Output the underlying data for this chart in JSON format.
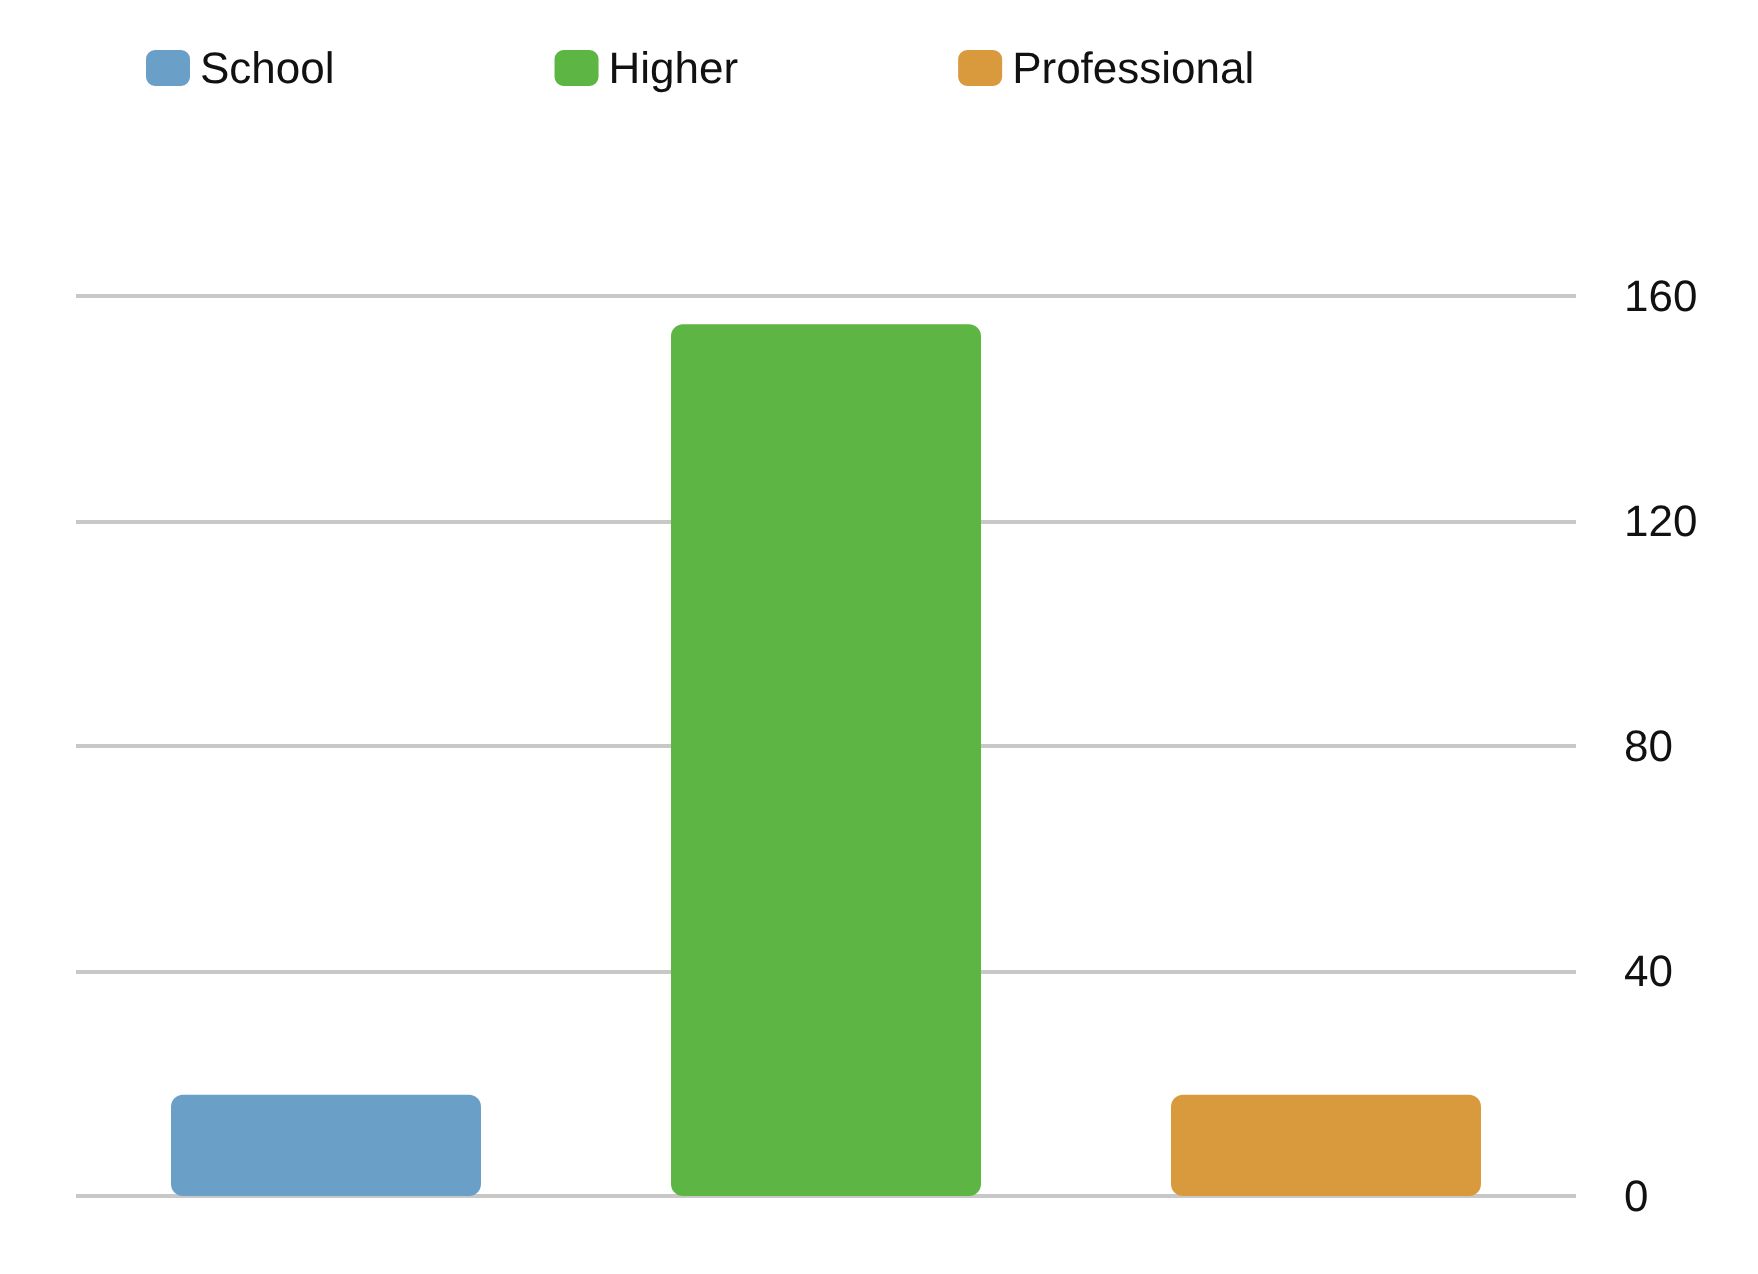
{
  "chart_data": {
    "type": "bar",
    "categories": [
      null,
      null,
      null
    ],
    "series": [
      {
        "name": "School",
        "color": "#6a9fc8",
        "values": [
          18,
          null,
          null
        ]
      },
      {
        "name": "Higher",
        "color": "#5db543",
        "values": [
          null,
          155,
          null
        ]
      },
      {
        "name": "Professional",
        "color": "#d99a3e",
        "values": [
          null,
          null,
          18
        ]
      }
    ],
    "ylim": [
      0,
      160
    ],
    "yticks": [
      0,
      40,
      80,
      120,
      160
    ],
    "grid": "y",
    "legend": "top left"
  }
}
